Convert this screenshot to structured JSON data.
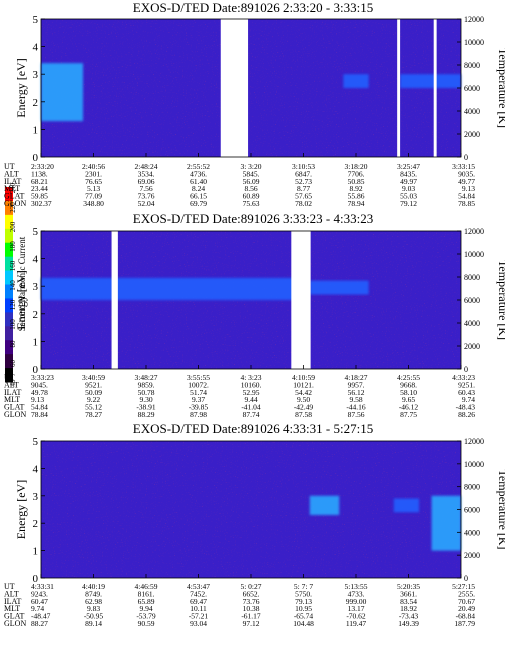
{
  "colorbar": {
    "label": "Second Harmonic Current",
    "ticks": [
      "240",
      "220",
      "200",
      "180",
      "160",
      "140",
      "120",
      "100",
      "80",
      "60",
      "40"
    ],
    "colors": [
      "#ff0000",
      "#ff8000",
      "#ffff00",
      "#c0ff00",
      "#00ff00",
      "#00e0a0",
      "#00c8ff",
      "#0080ff",
      "#0040ff",
      "#3030c0",
      "#4020a0",
      "#400080",
      "#300040",
      "#000000"
    ]
  },
  "chart_data": [
    {
      "type": "heatmap",
      "title": "EXOS-D/TED    Date:891026  2:33:20 - 3:33:15",
      "ylabel": "Energy [eV]",
      "y2label": "Temperature [K]",
      "ylim": [
        0,
        5
      ],
      "y2lim": [
        0,
        12000
      ],
      "yticks": [
        "0",
        "1",
        "2",
        "3",
        "4",
        "5"
      ],
      "y2ticks": [
        "0",
        "2000",
        "4000",
        "6000",
        "8000",
        "10000",
        "12000"
      ],
      "data_gaps": [
        [
          0.428,
          0.493
        ],
        [
          0.848,
          0.855
        ],
        [
          0.935,
          0.942
        ]
      ],
      "features": [
        {
          "x": [
            0.0,
            0.1
          ],
          "y": [
            1.3,
            3.4
          ],
          "desc": "bright cyan band, rising"
        },
        {
          "x": [
            0.72,
            0.78
          ],
          "y": [
            2.5,
            3.0
          ],
          "desc": "blue patch"
        },
        {
          "x": [
            0.855,
            1.0
          ],
          "y": [
            2.5,
            3.0
          ],
          "desc": "blue band"
        }
      ],
      "table": {
        "row_labels": [
          "UT",
          "ALT",
          "ILAT",
          "MLT",
          "GLAT",
          "GLON"
        ],
        "columns": [
          [
            "2:33:20",
            "1138.",
            "68.21",
            "23.44",
            "59.85",
            "302.37"
          ],
          [
            "2:40:56",
            "2301.",
            "76.65",
            "5.13",
            "77.09",
            "348.80"
          ],
          [
            "2:48:24",
            "3534.",
            "69.06",
            "7.56",
            "73.76",
            "52.04"
          ],
          [
            "2:55:52",
            "4736.",
            "61.40",
            "8.24",
            "66.15",
            "69.79"
          ],
          [
            "3: 3:20",
            "5845.",
            "56.09",
            "8.56",
            "60.89",
            "75.63"
          ],
          [
            "3:10:53",
            "6847.",
            "52.73",
            "8.77",
            "57.65",
            "78.02"
          ],
          [
            "3:18:20",
            "7706.",
            "50.85",
            "8.92",
            "55.86",
            "78.94"
          ],
          [
            "3:25:47",
            "8435.",
            "49.97",
            "9.03",
            "55.03",
            "79.12"
          ],
          [
            "3:33:15",
            "9035.",
            "49.77",
            "9.13",
            "54.84",
            "78.85"
          ]
        ]
      }
    },
    {
      "type": "heatmap",
      "title": "EXOS-D/TED    Date:891026  3:33:23 - 4:33:23",
      "ylabel": "Energy [eV]",
      "y2label": "Temperature [K]",
      "ylim": [
        0,
        5
      ],
      "y2lim": [
        0,
        12000
      ],
      "yticks": [
        "0",
        "1",
        "2",
        "3",
        "4",
        "5"
      ],
      "y2ticks": [
        "0",
        "2000",
        "4000",
        "6000",
        "8000",
        "10000",
        "12000"
      ],
      "data_gaps": [
        [
          0.168,
          0.183
        ],
        [
          0.596,
          0.642
        ]
      ],
      "features": [
        {
          "x": [
            0.0,
            0.62
          ],
          "y": [
            2.5,
            3.3
          ],
          "desc": "bright blue band"
        },
        {
          "x": [
            0.64,
            0.78
          ],
          "y": [
            2.7,
            3.2
          ],
          "desc": "blue band"
        }
      ],
      "table": {
        "row_labels": [
          "UT",
          "ALT",
          "ILAT",
          "MLT",
          "GLAT",
          "GLON"
        ],
        "columns": [
          [
            "3:33:23",
            "9045.",
            "49.78",
            "9.13",
            "54.84",
            "78.84"
          ],
          [
            "3:40:59",
            "9521.",
            "50.09",
            "9.22",
            "55.12",
            "78.27"
          ],
          [
            "3:48:27",
            "9859.",
            "50.78",
            "9.30",
            "-38.91",
            "88.29"
          ],
          [
            "3:55:55",
            "10072.",
            "51.74",
            "9.37",
            "-39.85",
            "87.98"
          ],
          [
            "4: 3:23",
            "10160.",
            "52.95",
            "9.44",
            "-41.04",
            "87.74"
          ],
          [
            "4:10:59",
            "10121.",
            "54.42",
            "9.50",
            "-42.49",
            "87.58"
          ],
          [
            "4:18:27",
            "9957.",
            "56.12",
            "9.58",
            "-44.16",
            "87.56"
          ],
          [
            "4:25:55",
            "9668.",
            "58.10",
            "9.65",
            "-46.12",
            "87.75"
          ],
          [
            "4:33:23",
            "9251.",
            "60.43",
            "9.74",
            "-48.43",
            "88.26"
          ]
        ]
      }
    },
    {
      "type": "heatmap",
      "title": "EXOS-D/TED    Date:891026  4:33:31 - 5:27:15",
      "ylabel": "Energy [eV]",
      "y2label": "Temperature [K]",
      "ylim": [
        0,
        5
      ],
      "y2lim": [
        0,
        12000
      ],
      "yticks": [
        "0",
        "1",
        "2",
        "3",
        "4",
        "5"
      ],
      "y2ticks": [
        "0",
        "2000",
        "4000",
        "6000",
        "8000",
        "10000",
        "12000"
      ],
      "data_gaps": [],
      "features": [
        {
          "x": [
            0.64,
            0.71
          ],
          "y": [
            2.3,
            3.0
          ],
          "desc": "cyan patch"
        },
        {
          "x": [
            0.84,
            0.9
          ],
          "y": [
            2.4,
            2.9
          ],
          "desc": "blue patch"
        },
        {
          "x": [
            0.93,
            1.0
          ],
          "y": [
            1.0,
            3.0
          ],
          "desc": "cyan streak"
        }
      ],
      "table": {
        "row_labels": [
          "UT",
          "ALT",
          "ILAT",
          "MLT",
          "GLAT",
          "GLON"
        ],
        "columns": [
          [
            "4:33:31",
            "9243.",
            "60.47",
            "9.74",
            "-48.47",
            "88.27"
          ],
          [
            "4:40:19",
            "8749.",
            "62.98",
            "9.83",
            "-50.95",
            "89.14"
          ],
          [
            "4:46:59",
            "8161.",
            "65.89",
            "9.94",
            "-53.79",
            "90.59"
          ],
          [
            "4:53:47",
            "7452.",
            "69.47",
            "10.11",
            "-57.21",
            "93.04"
          ],
          [
            "5: 0:27",
            "6652.",
            "73.76",
            "10.38",
            "-61.17",
            "97.12"
          ],
          [
            "5: 7: 7",
            "5750.",
            "79.13",
            "10.95",
            "-65.74",
            "104.48"
          ],
          [
            "5:13:55",
            "4733.",
            "999.00",
            "13.17",
            "-70.62",
            "119.47"
          ],
          [
            "5:20:35",
            "3661.",
            "83.54",
            "18.92",
            "-73.43",
            "149.39"
          ],
          [
            "5:27:15",
            "2555.",
            "70.67",
            "20.49",
            "-68.84",
            "187.79"
          ]
        ]
      }
    }
  ]
}
